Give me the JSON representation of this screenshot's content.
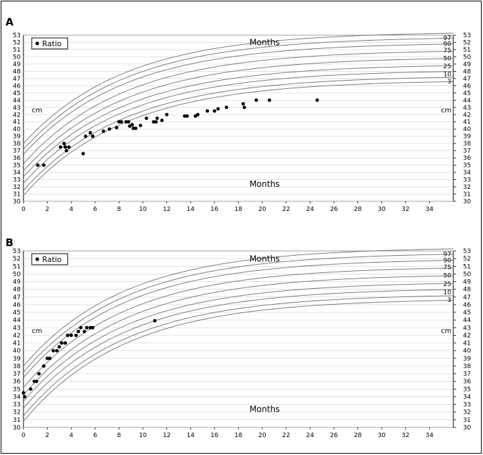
{
  "chart_data": [
    {
      "type": "scatter",
      "panel_label": "A",
      "legend_label": "Ratio",
      "unit_label": "cm",
      "top_label": "Months",
      "bottom_label": "Months",
      "xlim": [
        0,
        36
      ],
      "ylim": [
        30,
        53
      ],
      "x_ticks": [
        0,
        2,
        4,
        6,
        8,
        10,
        12,
        14,
        16,
        18,
        20,
        22,
        24,
        26,
        28,
        30,
        32,
        34
      ],
      "percentile_labels": [
        "97",
        "90",
        "75",
        "50",
        "25",
        "10",
        "3"
      ],
      "points": [
        {
          "x": 1.2,
          "y": 35.0
        },
        {
          "x": 1.7,
          "y": 35.0
        },
        {
          "x": 3.1,
          "y": 37.5
        },
        {
          "x": 3.4,
          "y": 38.0
        },
        {
          "x": 3.5,
          "y": 37.5
        },
        {
          "x": 3.6,
          "y": 37.0
        },
        {
          "x": 3.8,
          "y": 37.5
        },
        {
          "x": 5.0,
          "y": 36.6
        },
        {
          "x": 5.2,
          "y": 39.0
        },
        {
          "x": 5.6,
          "y": 39.5
        },
        {
          "x": 5.8,
          "y": 39.0
        },
        {
          "x": 6.7,
          "y": 39.7
        },
        {
          "x": 7.2,
          "y": 40.0
        },
        {
          "x": 7.8,
          "y": 40.2
        },
        {
          "x": 8.0,
          "y": 41.0
        },
        {
          "x": 8.2,
          "y": 41.0
        },
        {
          "x": 8.6,
          "y": 41.0
        },
        {
          "x": 8.8,
          "y": 41.0
        },
        {
          "x": 8.9,
          "y": 40.4
        },
        {
          "x": 9.1,
          "y": 40.6
        },
        {
          "x": 9.2,
          "y": 40.1
        },
        {
          "x": 9.4,
          "y": 40.1
        },
        {
          "x": 9.8,
          "y": 40.5
        },
        {
          "x": 10.3,
          "y": 41.5
        },
        {
          "x": 10.9,
          "y": 41.0
        },
        {
          "x": 11.1,
          "y": 41.0
        },
        {
          "x": 11.2,
          "y": 41.5
        },
        {
          "x": 11.6,
          "y": 41.2
        },
        {
          "x": 12.0,
          "y": 42.0
        },
        {
          "x": 13.5,
          "y": 41.8
        },
        {
          "x": 13.7,
          "y": 41.8
        },
        {
          "x": 14.4,
          "y": 41.8
        },
        {
          "x": 14.6,
          "y": 42.0
        },
        {
          "x": 15.4,
          "y": 42.5
        },
        {
          "x": 16.0,
          "y": 42.5
        },
        {
          "x": 16.3,
          "y": 42.8
        },
        {
          "x": 17.0,
          "y": 43.0
        },
        {
          "x": 18.4,
          "y": 43.5
        },
        {
          "x": 18.5,
          "y": 43.0
        },
        {
          "x": 19.5,
          "y": 44.0
        },
        {
          "x": 20.6,
          "y": 44.0
        },
        {
          "x": 24.6,
          "y": 44.0
        }
      ]
    },
    {
      "type": "scatter",
      "panel_label": "B",
      "legend_label": "Ratio",
      "unit_label": "cm",
      "top_label": "Months",
      "bottom_label": "Months",
      "xlim": [
        0,
        36
      ],
      "ylim": [
        30,
        53
      ],
      "x_ticks": [
        0,
        2,
        4,
        6,
        8,
        10,
        12,
        14,
        16,
        18,
        20,
        22,
        24,
        26,
        28,
        30,
        32,
        34
      ],
      "percentile_labels": [
        "97",
        "90",
        "75",
        "50",
        "25",
        "10",
        "3"
      ],
      "points": [
        {
          "x": 0.0,
          "y": 34.5
        },
        {
          "x": 0.1,
          "y": 34.0
        },
        {
          "x": 0.6,
          "y": 35.0
        },
        {
          "x": 0.9,
          "y": 36.0
        },
        {
          "x": 1.1,
          "y": 36.0
        },
        {
          "x": 1.3,
          "y": 37.0
        },
        {
          "x": 1.7,
          "y": 38.0
        },
        {
          "x": 2.0,
          "y": 39.0
        },
        {
          "x": 2.2,
          "y": 39.0
        },
        {
          "x": 2.5,
          "y": 40.0
        },
        {
          "x": 2.8,
          "y": 40.0
        },
        {
          "x": 3.0,
          "y": 40.5
        },
        {
          "x": 3.2,
          "y": 41.0
        },
        {
          "x": 3.5,
          "y": 41.0
        },
        {
          "x": 3.7,
          "y": 42.0
        },
        {
          "x": 4.0,
          "y": 42.0
        },
        {
          "x": 4.4,
          "y": 42.0
        },
        {
          "x": 4.6,
          "y": 42.5
        },
        {
          "x": 4.8,
          "y": 43.0
        },
        {
          "x": 5.1,
          "y": 42.5
        },
        {
          "x": 5.3,
          "y": 43.0
        },
        {
          "x": 5.6,
          "y": 43.0
        },
        {
          "x": 5.8,
          "y": 43.0
        },
        {
          "x": 11.0,
          "y": 43.9
        }
      ]
    }
  ]
}
